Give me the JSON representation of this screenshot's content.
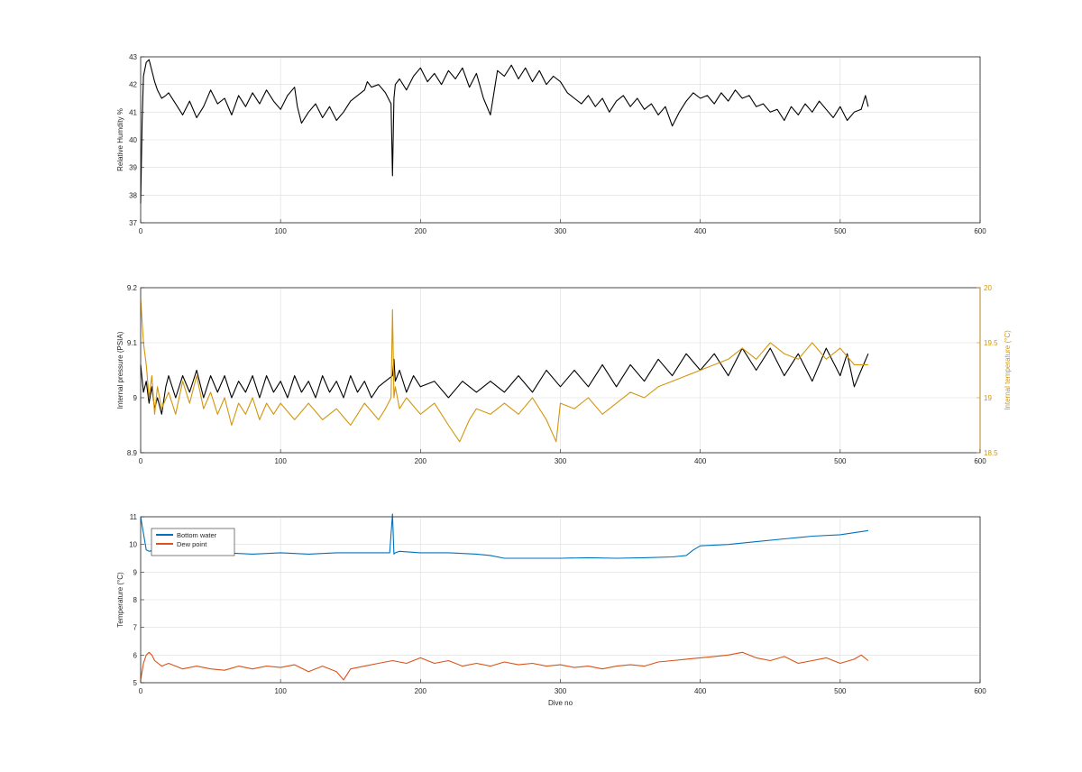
{
  "chart_data": [
    {
      "type": "line",
      "ylabel": "Relative Humdity %",
      "xlabel": "",
      "xlim": [
        0,
        600
      ],
      "ylim": [
        37,
        43
      ],
      "xticks": [
        0,
        100,
        200,
        300,
        400,
        500,
        600
      ],
      "yticks": [
        37,
        38,
        39,
        40,
        41,
        42,
        43
      ],
      "grid": true,
      "series": [
        {
          "color": "#000000",
          "x": [
            0,
            1,
            2,
            4,
            6,
            8,
            10,
            12,
            15,
            18,
            20,
            25,
            30,
            35,
            40,
            45,
            50,
            55,
            60,
            65,
            70,
            75,
            80,
            85,
            90,
            95,
            100,
            105,
            110,
            112,
            115,
            120,
            125,
            130,
            135,
            140,
            145,
            150,
            155,
            160,
            162,
            165,
            170,
            175,
            179,
            180,
            181,
            182,
            185,
            190,
            195,
            200,
            205,
            210,
            215,
            220,
            225,
            230,
            235,
            240,
            245,
            250,
            255,
            260,
            265,
            270,
            275,
            280,
            285,
            290,
            295,
            300,
            305,
            310,
            315,
            320,
            325,
            330,
            335,
            340,
            345,
            350,
            355,
            360,
            365,
            370,
            375,
            380,
            385,
            390,
            395,
            400,
            405,
            410,
            415,
            420,
            425,
            430,
            435,
            440,
            445,
            450,
            455,
            460,
            465,
            470,
            475,
            480,
            485,
            490,
            495,
            500,
            505,
            510,
            515,
            518,
            520
          ],
          "y": [
            37.7,
            40.6,
            42.3,
            42.8,
            42.9,
            42.5,
            42.1,
            41.8,
            41.5,
            41.6,
            41.7,
            41.3,
            40.9,
            41.4,
            40.8,
            41.2,
            41.8,
            41.3,
            41.5,
            40.9,
            41.6,
            41.2,
            41.7,
            41.3,
            41.8,
            41.4,
            41.1,
            41.6,
            41.9,
            41.2,
            40.6,
            41.0,
            41.3,
            40.8,
            41.2,
            40.7,
            41.0,
            41.4,
            41.6,
            41.8,
            42.1,
            41.9,
            42.0,
            41.7,
            41.3,
            38.7,
            41.5,
            42.0,
            42.2,
            41.8,
            42.3,
            42.6,
            42.1,
            42.4,
            42.0,
            42.5,
            42.2,
            42.6,
            41.9,
            42.4,
            41.5,
            40.9,
            42.5,
            42.3,
            42.7,
            42.2,
            42.6,
            42.1,
            42.5,
            42.0,
            42.3,
            42.1,
            41.7,
            41.5,
            41.3,
            41.6,
            41.2,
            41.5,
            41.0,
            41.4,
            41.6,
            41.2,
            41.5,
            41.1,
            41.3,
            40.9,
            41.2,
            40.5,
            41.0,
            41.4,
            41.7,
            41.5,
            41.6,
            41.3,
            41.7,
            41.4,
            41.8,
            41.5,
            41.6,
            41.2,
            41.3,
            41.0,
            41.1,
            40.7,
            41.2,
            40.9,
            41.3,
            41.0,
            41.4,
            41.1,
            40.8,
            41.2,
            40.7,
            41.0,
            41.1,
            41.6,
            41.2
          ]
        }
      ]
    },
    {
      "type": "line",
      "ylabel": "Internal pressure (PSIA)",
      "ylabel_right": "Internal temperature (°C)",
      "xlabel": "",
      "xlim": [
        0,
        600
      ],
      "ylim": [
        8.9,
        9.2
      ],
      "ylim_right": [
        18.5,
        20
      ],
      "xticks": [
        0,
        100,
        200,
        300,
        400,
        500,
        600
      ],
      "yticks": [
        "8.9",
        "9",
        "9.1",
        "9.2"
      ],
      "yticks_right": [
        "18.5",
        "19",
        "19.5",
        "20"
      ],
      "grid": true,
      "series": [
        {
          "axis": "left",
          "color": "#000000",
          "x": [
            0,
            2,
            4,
            6,
            8,
            10,
            12,
            15,
            18,
            20,
            25,
            30,
            35,
            40,
            45,
            50,
            55,
            60,
            65,
            70,
            75,
            80,
            85,
            90,
            95,
            100,
            105,
            110,
            115,
            120,
            125,
            130,
            135,
            140,
            145,
            150,
            155,
            160,
            165,
            170,
            175,
            180,
            181,
            182,
            185,
            190,
            195,
            200,
            210,
            220,
            230,
            240,
            250,
            260,
            270,
            280,
            290,
            300,
            310,
            320,
            330,
            340,
            350,
            360,
            370,
            380,
            390,
            400,
            410,
            420,
            430,
            440,
            450,
            460,
            470,
            480,
            490,
            500,
            505,
            510,
            515,
            520
          ],
          "y": [
            9.06,
            9.01,
            9.03,
            8.99,
            9.02,
            8.98,
            9.0,
            8.97,
            9.02,
            9.04,
            9.0,
            9.04,
            9.01,
            9.05,
            9.0,
            9.04,
            9.01,
            9.04,
            9.0,
            9.03,
            9.01,
            9.04,
            9.0,
            9.04,
            9.01,
            9.03,
            9.0,
            9.04,
            9.01,
            9.03,
            9.0,
            9.04,
            9.01,
            9.03,
            9.0,
            9.04,
            9.01,
            9.03,
            9.0,
            9.02,
            9.03,
            9.04,
            9.07,
            9.03,
            9.05,
            9.01,
            9.04,
            9.02,
            9.03,
            9.0,
            9.03,
            9.01,
            9.03,
            9.01,
            9.04,
            9.01,
            9.05,
            9.02,
            9.05,
            9.02,
            9.06,
            9.02,
            9.06,
            9.03,
            9.07,
            9.04,
            9.08,
            9.05,
            9.08,
            9.04,
            9.09,
            9.05,
            9.09,
            9.04,
            9.08,
            9.03,
            9.09,
            9.04,
            9.08,
            9.02,
            9.05,
            9.08
          ]
        },
        {
          "axis": "right",
          "color": "#d2960c",
          "x": [
            0,
            2,
            4,
            6,
            8,
            10,
            12,
            15,
            20,
            25,
            30,
            35,
            40,
            45,
            50,
            55,
            60,
            65,
            70,
            75,
            80,
            85,
            90,
            95,
            100,
            110,
            120,
            130,
            140,
            150,
            160,
            170,
            175,
            179,
            180,
            181,
            182,
            185,
            190,
            200,
            210,
            220,
            228,
            235,
            240,
            250,
            260,
            270,
            280,
            290,
            297,
            300,
            310,
            320,
            330,
            340,
            350,
            360,
            370,
            380,
            390,
            400,
            410,
            420,
            430,
            440,
            450,
            460,
            470,
            480,
            490,
            500,
            510,
            520
          ],
          "y": [
            19.9,
            19.5,
            19.3,
            19.0,
            19.2,
            18.85,
            19.1,
            18.9,
            19.05,
            18.85,
            19.15,
            18.95,
            19.2,
            18.9,
            19.05,
            18.85,
            19.0,
            18.75,
            18.95,
            18.85,
            19.0,
            18.8,
            18.95,
            18.85,
            18.95,
            18.8,
            18.95,
            18.8,
            18.9,
            18.75,
            18.95,
            18.8,
            18.9,
            19.0,
            19.8,
            19.0,
            19.1,
            18.9,
            19.0,
            18.85,
            18.95,
            18.75,
            18.6,
            18.8,
            18.9,
            18.85,
            18.95,
            18.85,
            19.0,
            18.8,
            18.6,
            18.95,
            18.9,
            19.0,
            18.85,
            18.95,
            19.05,
            19.0,
            19.1,
            19.15,
            19.2,
            19.25,
            19.3,
            19.35,
            19.45,
            19.35,
            19.5,
            19.4,
            19.35,
            19.5,
            19.35,
            19.45,
            19.3,
            19.3
          ]
        }
      ]
    },
    {
      "type": "line",
      "ylabel": "Temperature (°C)",
      "xlabel": "Dive no",
      "xlim": [
        0,
        600
      ],
      "ylim": [
        5,
        11
      ],
      "xticks": [
        0,
        100,
        200,
        300,
        400,
        500,
        600
      ],
      "yticks": [
        5,
        6,
        7,
        8,
        9,
        10,
        11
      ],
      "grid": true,
      "legend": "top-left",
      "series": [
        {
          "name": "Bottom water",
          "color": "#0072bd",
          "x": [
            0,
            2,
            4,
            6,
            10,
            15,
            20,
            40,
            60,
            80,
            100,
            120,
            140,
            160,
            178,
            180,
            181,
            182,
            185,
            200,
            220,
            240,
            250,
            260,
            280,
            300,
            320,
            340,
            360,
            380,
            390,
            395,
            400,
            420,
            440,
            460,
            480,
            500,
            520
          ],
          "y": [
            11.0,
            10.4,
            9.8,
            9.75,
            9.8,
            9.75,
            9.8,
            9.75,
            9.7,
            9.65,
            9.7,
            9.65,
            9.7,
            9.7,
            9.7,
            11.1,
            9.65,
            9.7,
            9.75,
            9.7,
            9.7,
            9.65,
            9.6,
            9.5,
            9.5,
            9.5,
            9.52,
            9.5,
            9.52,
            9.55,
            9.6,
            9.8,
            9.95,
            10.0,
            10.1,
            10.2,
            10.3,
            10.35,
            10.5
          ]
        },
        {
          "name": "Dew point",
          "color": "#d95319",
          "x": [
            0,
            2,
            4,
            6,
            8,
            10,
            15,
            20,
            30,
            40,
            50,
            60,
            70,
            80,
            90,
            100,
            110,
            120,
            130,
            140,
            145,
            150,
            160,
            170,
            180,
            190,
            200,
            210,
            220,
            230,
            240,
            250,
            260,
            270,
            280,
            290,
            300,
            310,
            320,
            330,
            340,
            350,
            360,
            370,
            380,
            390,
            400,
            410,
            420,
            430,
            440,
            450,
            460,
            470,
            480,
            490,
            500,
            510,
            515,
            520
          ],
          "y": [
            5.1,
            5.7,
            6.0,
            6.1,
            6.0,
            5.8,
            5.6,
            5.7,
            5.5,
            5.6,
            5.5,
            5.45,
            5.6,
            5.5,
            5.6,
            5.55,
            5.65,
            5.4,
            5.6,
            5.4,
            5.1,
            5.5,
            5.6,
            5.7,
            5.8,
            5.7,
            5.9,
            5.7,
            5.8,
            5.6,
            5.7,
            5.6,
            5.75,
            5.65,
            5.7,
            5.6,
            5.65,
            5.55,
            5.6,
            5.5,
            5.6,
            5.65,
            5.6,
            5.75,
            5.8,
            5.85,
            5.9,
            5.95,
            6.0,
            6.1,
            5.9,
            5.8,
            5.95,
            5.7,
            5.8,
            5.9,
            5.7,
            5.85,
            6.0,
            5.8
          ]
        }
      ]
    }
  ]
}
